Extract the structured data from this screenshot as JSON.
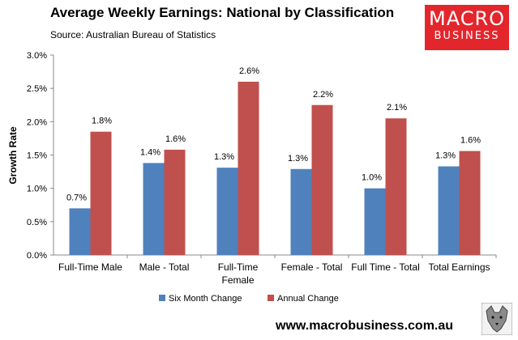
{
  "header": {
    "title": "Average Weekly Earnings: National by Classification",
    "subtitle": "Source: Australian Bureau of Statistics"
  },
  "logo": {
    "line1": "MACRO",
    "line2": "BUSINESS",
    "color": "#e3262c"
  },
  "footer": {
    "website": "www.macrobusiness.com.au"
  },
  "chart_data": {
    "type": "bar",
    "ylabel": "Growth Rate",
    "ylim": [
      0,
      3
    ],
    "yticks": [
      "0.0%",
      "0.5%",
      "1.0%",
      "1.5%",
      "2.0%",
      "2.5%",
      "3.0%"
    ],
    "categories": [
      "Full-Time Male",
      "Male - Total",
      "Full-Time Female",
      "Female - Total",
      "Full Time - Total",
      "Total Earnings"
    ],
    "series": [
      {
        "name": "Six Month Change",
        "color": "#4f81bd",
        "values": [
          0.7,
          1.38,
          1.31,
          1.29,
          1.0,
          1.33
        ],
        "labels": [
          "0.7%",
          "1.4%",
          "1.3%",
          "1.3%",
          "1.0%",
          "1.3%"
        ]
      },
      {
        "name": "Annual Change",
        "color": "#c0504d",
        "values": [
          1.85,
          1.58,
          2.6,
          2.25,
          2.05,
          1.56
        ],
        "labels": [
          "1.8%",
          "1.6%",
          "2.6%",
          "2.2%",
          "2.1%",
          "1.6%"
        ]
      }
    ],
    "grid": false,
    "legend": "bottom"
  }
}
